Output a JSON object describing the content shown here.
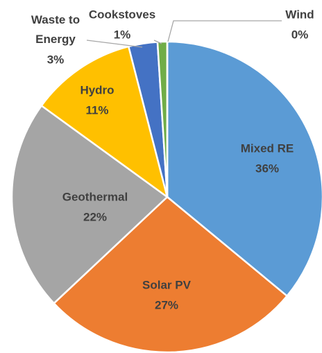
{
  "chart_data": {
    "type": "pie",
    "categories": [
      "Mixed RE",
      "Solar PV",
      "Geothermal",
      "Hydro",
      "Waste to Energy",
      "Cookstoves",
      "Wind"
    ],
    "values": [
      36,
      27,
      22,
      11,
      3,
      1,
      0
    ],
    "value_labels": [
      "36%",
      "27%",
      "22%",
      "11%",
      "3%",
      "1%",
      "0%"
    ],
    "colors": [
      "#5b9bd5",
      "#ed7d31",
      "#a5a5a5",
      "#ffc000",
      "#4472c4",
      "#70ad47",
      "#9dc3e6"
    ]
  }
}
